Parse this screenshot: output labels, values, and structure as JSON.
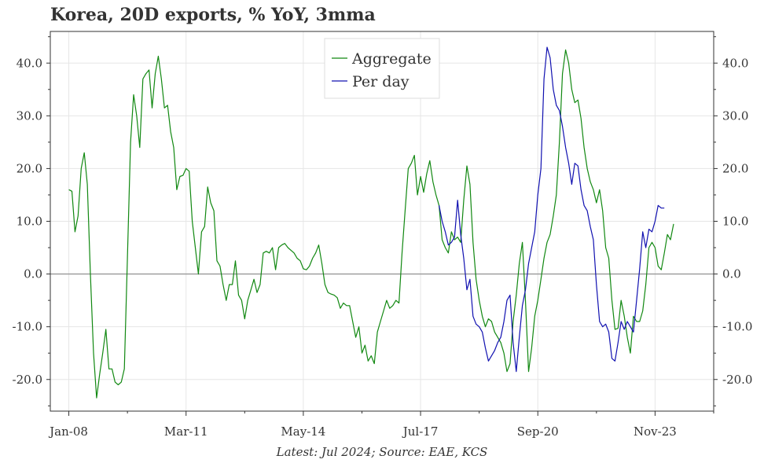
{
  "chart_data": {
    "type": "line",
    "title": "Korea, 20D exports, % YoY, 3mma",
    "caption": "Latest: Jul 2024; Source: EAE, KCS",
    "xlabel": "",
    "ylabel": "",
    "x_axis": {
      "type": "date",
      "range": [
        "2007-07",
        "2025-06"
      ],
      "tick_labels": [
        "Jan-08",
        "Mar-11",
        "May-14",
        "Jul-17",
        "Sep-20",
        "Nov-23"
      ],
      "tick_dates": [
        "2008-01",
        "2011-03",
        "2014-05",
        "2017-07",
        "2020-09",
        "2023-11"
      ]
    },
    "y_axis": {
      "range": [
        -26,
        46
      ],
      "ticks": [
        -20,
        -10,
        0,
        10,
        20,
        30,
        40
      ],
      "tick_labels": [
        "-20.0",
        "-10.0",
        "0.0",
        "10.0",
        "20.0",
        "30.0",
        "40.0"
      ],
      "right_axis": true
    },
    "grid": true,
    "legend": "top-center",
    "series": [
      {
        "name": "Aggregate",
        "color": "#118811",
        "points": [
          [
            "2008-01",
            16
          ],
          [
            "2008-02",
            15.7
          ],
          [
            "2008-03",
            8
          ],
          [
            "2008-04",
            11
          ],
          [
            "2008-05",
            20
          ],
          [
            "2008-06",
            23
          ],
          [
            "2008-07",
            17
          ],
          [
            "2008-08",
            0
          ],
          [
            "2008-09",
            -15
          ],
          [
            "2008-10",
            -23.5
          ],
          [
            "2008-11",
            -19
          ],
          [
            "2008-12",
            -15
          ],
          [
            "2009-01",
            -10.5
          ],
          [
            "2009-02",
            -18
          ],
          [
            "2009-03",
            -18
          ],
          [
            "2009-04",
            -20.5
          ],
          [
            "2009-05",
            -21
          ],
          [
            "2009-06",
            -20.5
          ],
          [
            "2009-07",
            -18
          ],
          [
            "2009-08",
            3
          ],
          [
            "2009-09",
            25
          ],
          [
            "2009-10",
            34
          ],
          [
            "2009-11",
            30
          ],
          [
            "2009-12",
            24
          ],
          [
            "2010-01",
            37
          ],
          [
            "2010-02",
            38
          ],
          [
            "2010-03",
            38.7
          ],
          [
            "2010-04",
            31.5
          ],
          [
            "2010-05",
            38
          ],
          [
            "2010-06",
            41.3
          ],
          [
            "2010-07",
            37
          ],
          [
            "2010-08",
            31.5
          ],
          [
            "2010-09",
            32
          ],
          [
            "2010-10",
            27
          ],
          [
            "2010-11",
            24
          ],
          [
            "2010-12",
            16
          ],
          [
            "2011-01",
            18.5
          ],
          [
            "2011-02",
            18.7
          ],
          [
            "2011-03",
            20
          ],
          [
            "2011-04",
            19.5
          ],
          [
            "2011-05",
            10
          ],
          [
            "2011-06",
            5
          ],
          [
            "2011-07",
            0
          ],
          [
            "2011-08",
            8
          ],
          [
            "2011-09",
            9
          ],
          [
            "2011-10",
            16.5
          ],
          [
            "2011-11",
            13.5
          ],
          [
            "2011-12",
            12
          ],
          [
            "2012-01",
            2.5
          ],
          [
            "2012-02",
            1.5
          ],
          [
            "2012-03",
            -2
          ],
          [
            "2012-04",
            -5
          ],
          [
            "2012-05",
            -2
          ],
          [
            "2012-06",
            -2
          ],
          [
            "2012-07",
            2.5
          ],
          [
            "2012-08",
            -4
          ],
          [
            "2012-09",
            -5
          ],
          [
            "2012-10",
            -8.5
          ],
          [
            "2012-11",
            -5
          ],
          [
            "2012-12",
            -3
          ],
          [
            "2013-01",
            -1
          ],
          [
            "2013-02",
            -3.5
          ],
          [
            "2013-03",
            -2
          ],
          [
            "2013-04",
            4
          ],
          [
            "2013-05",
            4.3
          ],
          [
            "2013-06",
            4
          ],
          [
            "2013-07",
            5
          ],
          [
            "2013-08",
            0.8
          ],
          [
            "2013-09",
            5
          ],
          [
            "2013-10",
            5.5
          ],
          [
            "2013-11",
            5.8
          ],
          [
            "2013-12",
            5
          ],
          [
            "2014-01",
            4.5
          ],
          [
            "2014-02",
            4
          ],
          [
            "2014-03",
            3
          ],
          [
            "2014-04",
            2.5
          ],
          [
            "2014-05",
            1
          ],
          [
            "2014-06",
            0.8
          ],
          [
            "2014-07",
            1.5
          ],
          [
            "2014-08",
            3
          ],
          [
            "2014-09",
            4
          ],
          [
            "2014-10",
            5.5
          ],
          [
            "2014-11",
            2
          ],
          [
            "2014-12",
            -2
          ],
          [
            "2015-01",
            -3.5
          ],
          [
            "2015-02",
            -3.8
          ],
          [
            "2015-03",
            -4
          ],
          [
            "2015-04",
            -4.5
          ],
          [
            "2015-05",
            -6.5
          ],
          [
            "2015-06",
            -5.5
          ],
          [
            "2015-07",
            -6
          ],
          [
            "2015-08",
            -6
          ],
          [
            "2015-09",
            -9
          ],
          [
            "2015-10",
            -12
          ],
          [
            "2015-11",
            -10
          ],
          [
            "2015-12",
            -15
          ],
          [
            "2016-01",
            -13.5
          ],
          [
            "2016-02",
            -16.5
          ],
          [
            "2016-03",
            -15.5
          ],
          [
            "2016-04",
            -17
          ],
          [
            "2016-05",
            -11
          ],
          [
            "2016-06",
            -9
          ],
          [
            "2016-07",
            -7
          ],
          [
            "2016-08",
            -5
          ],
          [
            "2016-09",
            -6.5
          ],
          [
            "2016-10",
            -6
          ],
          [
            "2016-11",
            -5
          ],
          [
            "2016-12",
            -5.5
          ],
          [
            "2017-01",
            4
          ],
          [
            "2017-02",
            12
          ],
          [
            "2017-03",
            20
          ],
          [
            "2017-04",
            21
          ],
          [
            "2017-05",
            22.5
          ],
          [
            "2017-06",
            15
          ],
          [
            "2017-07",
            18.5
          ],
          [
            "2017-08",
            15.5
          ],
          [
            "2017-09",
            19
          ],
          [
            "2017-10",
            21.5
          ],
          [
            "2017-11",
            17.5
          ],
          [
            "2017-12",
            15
          ],
          [
            "2018-01",
            13
          ],
          [
            "2018-02",
            6.5
          ],
          [
            "2018-03",
            5
          ],
          [
            "2018-04",
            4
          ],
          [
            "2018-05",
            8
          ],
          [
            "2018-06",
            6.5
          ],
          [
            "2018-07",
            7
          ],
          [
            "2018-08",
            6
          ],
          [
            "2018-09",
            14
          ],
          [
            "2018-10",
            20.5
          ],
          [
            "2018-11",
            17
          ],
          [
            "2018-12",
            6
          ],
          [
            "2019-01",
            -1
          ],
          [
            "2019-02",
            -5
          ],
          [
            "2019-03",
            -8
          ],
          [
            "2019-04",
            -10
          ],
          [
            "2019-05",
            -8.5
          ],
          [
            "2019-06",
            -9
          ],
          [
            "2019-07",
            -11
          ],
          [
            "2019-08",
            -12
          ],
          [
            "2019-09",
            -13
          ],
          [
            "2019-10",
            -15
          ],
          [
            "2019-11",
            -18.5
          ],
          [
            "2019-12",
            -17
          ],
          [
            "2020-01",
            -9
          ],
          [
            "2020-02",
            -4
          ],
          [
            "2020-03",
            2
          ],
          [
            "2020-04",
            6
          ],
          [
            "2020-05",
            -5
          ],
          [
            "2020-06",
            -18.5
          ],
          [
            "2020-07",
            -14
          ],
          [
            "2020-08",
            -8
          ],
          [
            "2020-09",
            -5
          ],
          [
            "2020-10",
            -1
          ],
          [
            "2020-11",
            3
          ],
          [
            "2020-12",
            6
          ],
          [
            "2021-01",
            7.5
          ],
          [
            "2021-02",
            11
          ],
          [
            "2021-03",
            15
          ],
          [
            "2021-04",
            25
          ],
          [
            "2021-05",
            38
          ],
          [
            "2021-06",
            42.5
          ],
          [
            "2021-07",
            40
          ],
          [
            "2021-08",
            35
          ],
          [
            "2021-09",
            32.5
          ],
          [
            "2021-10",
            33
          ],
          [
            "2021-11",
            29.5
          ],
          [
            "2021-12",
            24
          ],
          [
            "2022-01",
            20
          ],
          [
            "2022-02",
            17.5
          ],
          [
            "2022-03",
            16
          ],
          [
            "2022-04",
            13.5
          ],
          [
            "2022-05",
            16
          ],
          [
            "2022-06",
            12
          ],
          [
            "2022-07",
            5
          ],
          [
            "2022-08",
            3
          ],
          [
            "2022-09",
            -5
          ],
          [
            "2022-10",
            -10.5
          ],
          [
            "2022-11",
            -10.3
          ],
          [
            "2022-12",
            -5
          ],
          [
            "2023-01",
            -8
          ],
          [
            "2023-02",
            -12
          ],
          [
            "2023-03",
            -15
          ],
          [
            "2023-04",
            -8
          ],
          [
            "2023-05",
            -9
          ],
          [
            "2023-06",
            -9
          ],
          [
            "2023-07",
            -7
          ],
          [
            "2023-08",
            -2
          ],
          [
            "2023-09",
            5
          ],
          [
            "2023-10",
            6
          ],
          [
            "2023-11",
            5
          ],
          [
            "2023-12",
            1.5
          ],
          [
            "2024-01",
            0.8
          ],
          [
            "2024-02",
            4
          ],
          [
            "2024-03",
            7.5
          ],
          [
            "2024-04",
            6.5
          ],
          [
            "2024-05",
            9.5
          ]
        ]
      },
      {
        "name": "Per day",
        "color": "#1010b0",
        "points": [
          [
            "2018-01",
            13
          ],
          [
            "2018-02",
            10
          ],
          [
            "2018-03",
            8
          ],
          [
            "2018-04",
            5.5
          ],
          [
            "2018-05",
            6
          ],
          [
            "2018-06",
            7
          ],
          [
            "2018-07",
            14
          ],
          [
            "2018-08",
            7.5
          ],
          [
            "2018-09",
            3
          ],
          [
            "2018-10",
            -3
          ],
          [
            "2018-11",
            -1
          ],
          [
            "2018-12",
            -8
          ],
          [
            "2019-01",
            -9.5
          ],
          [
            "2019-02",
            -10
          ],
          [
            "2019-03",
            -11
          ],
          [
            "2019-04",
            -14
          ],
          [
            "2019-05",
            -16.5
          ],
          [
            "2019-06",
            -15.5
          ],
          [
            "2019-07",
            -14.5
          ],
          [
            "2019-08",
            -13
          ],
          [
            "2019-09",
            -12
          ],
          [
            "2019-10",
            -9
          ],
          [
            "2019-11",
            -5
          ],
          [
            "2019-12",
            -4
          ],
          [
            "2020-01",
            -13
          ],
          [
            "2020-02",
            -18.5
          ],
          [
            "2020-03",
            -12
          ],
          [
            "2020-04",
            -6
          ],
          [
            "2020-05",
            -3
          ],
          [
            "2020-06",
            2
          ],
          [
            "2020-07",
            5
          ],
          [
            "2020-08",
            8
          ],
          [
            "2020-09",
            15
          ],
          [
            "2020-10",
            20
          ],
          [
            "2020-11",
            37
          ],
          [
            "2020-12",
            43
          ],
          [
            "2021-01",
            41
          ],
          [
            "2021-02",
            35
          ],
          [
            "2021-03",
            32
          ],
          [
            "2021-04",
            31
          ],
          [
            "2021-05",
            28
          ],
          [
            "2021-06",
            24
          ],
          [
            "2021-07",
            21
          ],
          [
            "2021-08",
            17
          ],
          [
            "2021-09",
            21
          ],
          [
            "2021-10",
            20.5
          ],
          [
            "2021-11",
            16
          ],
          [
            "2021-12",
            13
          ],
          [
            "2022-01",
            12
          ],
          [
            "2022-02",
            9
          ],
          [
            "2022-03",
            6.5
          ],
          [
            "2022-04",
            -2
          ],
          [
            "2022-05",
            -9
          ],
          [
            "2022-06",
            -10
          ],
          [
            "2022-07",
            -9.5
          ],
          [
            "2022-08",
            -11
          ],
          [
            "2022-09",
            -16
          ],
          [
            "2022-10",
            -16.5
          ],
          [
            "2022-11",
            -13
          ],
          [
            "2022-12",
            -9
          ],
          [
            "2023-01",
            -10.5
          ],
          [
            "2023-02",
            -9
          ],
          [
            "2023-03",
            -10
          ],
          [
            "2023-04",
            -11
          ],
          [
            "2023-05",
            -5
          ],
          [
            "2023-06",
            1
          ],
          [
            "2023-07",
            8
          ],
          [
            "2023-08",
            5
          ],
          [
            "2023-09",
            8.5
          ],
          [
            "2023-10",
            8
          ],
          [
            "2023-11",
            10
          ],
          [
            "2023-12",
            13
          ],
          [
            "2024-01",
            12.5
          ],
          [
            "2024-02",
            12.5
          ]
        ]
      }
    ]
  }
}
